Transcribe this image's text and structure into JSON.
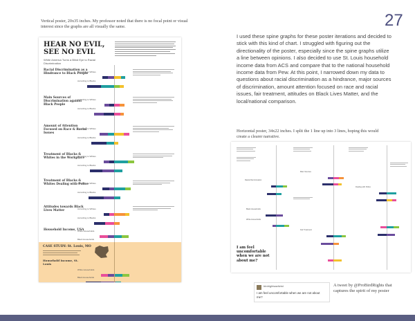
{
  "page_number": "27",
  "vertical_caption": "Vertical poster, 20x35 inches. My professor noted that there is no focal point or visual interest since the graphs are all visually the same.",
  "body_text": "I used these spine graphs for these poster iterations and decided to stick with this kind of chart. I struggled with figuring out the directionality of the poster, especially since the spine graphs utilize a line between opinions. I also decided to use  St. Louis household income data from ACS and compare that to the national household income data from Pew. At this point, I narrowed down my data to questions about racial discrimination as a hindrance, major sources of discrimination, amount attention focused on race and racial issues, fair treatment, attitudes on Black Lives Matter, and the local/national comparison.",
  "horizontal_caption": "Horizontal poster, 34x22 inches. I split the 1 line up into 3 lines, hoping this would create a clearer narrative.",
  "tweet_caption": "A tweet by @ProBirdRights that captures the spirit of my poster",
  "vposter": {
    "title": "HEAR NO EVIL, SEE NO EVIL",
    "subtitle": "White America Turns a Blind Eye to Racial Discrimination",
    "sections": [
      {
        "title": "Racial Discrimination as a Hindrance to Black People",
        "rows": [
          "According to Whites",
          "According to Blacks"
        ]
      },
      {
        "title": "Main Sources of Discrimination against Black People",
        "rows": [
          "According to Whites",
          "According to Blacks"
        ]
      },
      {
        "title": "Amount of Attention Focused on Race & Racial Issues",
        "rows": [
          "According to Whites",
          "According to Blacks"
        ]
      },
      {
        "title": "Treatment of Blacks & Whites in the Workplace",
        "rows": [
          "According to Whites",
          "According to Blacks"
        ]
      },
      {
        "title": "Treatment of Blacks & Whites Dealing with Police",
        "rows": [
          "According to Whites",
          "According to Blacks"
        ]
      },
      {
        "title": "Attitudes towards Black Lives Matter",
        "rows": [
          "According to Whites",
          "According to Blacks"
        ]
      },
      {
        "title": "Household Income, USA",
        "rows": [
          "White Households",
          "Black Households"
        ]
      }
    ],
    "case_study": {
      "title": "CASE STUDY: St. Louis, MO",
      "subtitle": "Household Income, St. Louis",
      "rows": [
        "White Households",
        "Black Households"
      ]
    }
  },
  "hposter": {
    "title": "I am feel uncomfortable when we are not about me?",
    "labels": [
      "Racial Discrimination",
      "Main Sources",
      "Black Households",
      "White Households",
      "Dealing with Police",
      "Fair Treatment"
    ]
  },
  "tweet": {
    "handle": "birdrightsactivist",
    "text": "I am feel uncomfortable when we are not about me?"
  },
  "colors": {
    "bar_palette": [
      "#2b2f6b",
      "#6a4c9c",
      "#1f9fa0",
      "#8cc63f",
      "#f3c12c",
      "#e94e9a",
      "#f6923a"
    ],
    "bottom_bar": "#5a5e82",
    "page_number": "#4d4f7f",
    "case_bg": "#fad8a6"
  }
}
